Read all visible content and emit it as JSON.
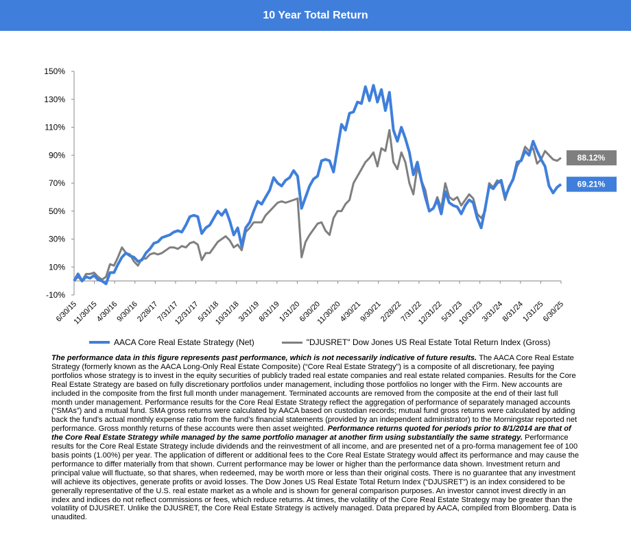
{
  "title": "10 Year Total Return",
  "chart_data": {
    "type": "line",
    "ylim": [
      -10,
      150
    ],
    "y_ticks": [
      -10,
      10,
      30,
      50,
      70,
      90,
      110,
      130,
      150
    ],
    "y_tick_labels": [
      "-10%",
      "10%",
      "30%",
      "50%",
      "70%",
      "90%",
      "110%",
      "130%",
      "150%"
    ],
    "x_ticks": [
      "6/30/15",
      "11/30/15",
      "4/30/16",
      "9/30/16",
      "2/28/17",
      "7/31/17",
      "12/31/17",
      "5/31/18",
      "10/31/18",
      "3/31/19",
      "8/31/19",
      "1/31/20",
      "6/30/20",
      "11/30/20",
      "4/30/21",
      "9/30/21",
      "2/28/22",
      "7/31/22",
      "12/31/22",
      "5/31/23",
      "10/31/23",
      "3/31/24",
      "8/31/24",
      "1/31/25",
      "6/30/25"
    ],
    "grid": false,
    "legend_position": "bottom",
    "series": [
      {
        "name": "AACA Core Real Estate Strategy (Net)",
        "color": "#3f7fdb",
        "end_label": "69.21%",
        "values": [
          0,
          5,
          0,
          3,
          2,
          4,
          1,
          0,
          -2,
          6,
          6,
          12,
          17,
          20,
          18,
          17,
          14,
          15,
          20,
          23,
          27,
          28,
          31,
          32,
          33,
          35,
          36,
          35,
          40,
          46,
          47,
          46,
          34,
          38,
          40,
          45,
          50,
          47,
          51,
          43,
          33,
          38,
          25,
          38,
          42,
          50,
          57,
          55,
          60,
          65,
          74,
          70,
          68,
          72,
          74,
          79,
          75,
          52,
          60,
          68,
          73,
          75,
          86,
          87,
          86,
          78,
          95,
          112,
          108,
          120,
          121,
          128,
          127,
          139,
          129,
          140,
          128,
          137,
          122,
          135,
          108,
          100,
          110,
          102,
          92,
          76,
          85,
          72,
          60,
          50,
          52,
          58,
          48,
          64,
          56,
          54,
          53,
          48,
          54,
          58,
          56,
          45,
          38,
          52,
          68,
          66,
          70,
          72,
          60,
          67,
          73,
          85,
          86,
          93,
          90,
          100,
          93,
          87,
          82,
          68,
          63,
          67,
          69.21
        ]
      },
      {
        "name": "\"DJUSRET\" Dow Jones US Real Estate Total Return Index (Gross)",
        "color": "#7f7f7f",
        "end_label": "88.12%",
        "values": [
          0,
          3,
          0,
          5,
          5,
          6,
          3,
          1,
          3,
          12,
          11,
          17,
          24,
          20,
          19,
          14,
          11,
          16,
          16,
          19,
          20,
          19,
          20,
          22,
          24,
          24,
          23,
          25,
          24,
          27,
          28,
          26,
          15,
          20,
          20,
          24,
          28,
          30,
          32,
          29,
          24,
          26,
          22,
          35,
          38,
          42,
          42,
          42,
          47,
          50,
          53,
          56,
          57,
          56,
          57,
          58,
          59,
          17,
          28,
          33,
          37,
          41,
          42,
          36,
          33,
          45,
          50,
          50,
          55,
          58,
          70,
          75,
          80,
          85,
          88,
          92,
          82,
          95,
          93,
          108,
          85,
          80,
          92,
          85,
          70,
          62,
          82,
          72,
          65,
          50,
          52,
          60,
          52,
          70,
          60,
          58,
          60,
          54,
          58,
          62,
          59,
          48,
          45,
          50,
          70,
          67,
          72,
          70,
          58,
          68,
          72,
          82,
          87,
          96,
          93,
          95,
          84,
          87,
          93,
          90,
          87,
          86,
          88.12
        ]
      }
    ]
  },
  "legend": {
    "net_label": "AACA Core Real Estate Strategy (Net)",
    "gross_label": "\"DJUSRET\" Dow Jones US Real Estate Total Return Index (Gross)"
  },
  "disclaimer": {
    "p1_bold": "The performance data in this figure represents past performance, which is not necessarily indicative of future results.",
    "p2": " The AACA  Core Real Estate Strategy (formerly known as the AACA  Long-Only Real Estate Composite) (“Core Real Estate Strategy”) is a composite of all discretionary, fee paying portfolios whose strategy is to invest in the equity securities of publicly traded real estate companies and real estate related companies. Results for the Core Real Estate Strategy  are based on fully discretionary portfolios under management, including those portfolios no longer with the Firm. New accounts are included in the composite from the first full month under management. Terminated accounts are removed from the composite at the end of their last full month under management. Performance results for the Core Real Estate Strategy reflect the aggregation of performance of separately managed accounts (“SMAs”) and a mutual fund. SMA  gross returns were calculated by AACA  based on custodian records; mutual fund gross returns were calculated by adding back the fund’s actual monthly expense ratio from the fund’s financial statements (provided by an independent administrator) to the Morningstar reported net performance. Gross monthly returns of these accounts were then asset weighted. ",
    "p3_bold": "Performance returns quoted for periods prior to 8/1/2014 are that of the Core Real Estate Strategy while managed by the same portfolio manager at another firm using substantially the same strategy.",
    "p4": " Performance results for the Core Real Estate Strategy include dividends and the reinvestment of all income, and are presented net of a pro-forma management fee of 100 basis points (1.00%) per year. The application of different or additional fees to the Core Real Estate Strategy would affect its performance and may cause the performance to differ materially from that  shown. Current performance may be lower or higher than the performance data shown. Investment return and principal value will fluctuate, so that shares, when redeemed, may be worth more or less than their original costs. There is no guarantee that any investment will achieve its objectives, generate profits or avoid losses. The Dow Jones US Real Estate Total Return Index (“DJUSRET”) is an index considered to be generally representative of the U.S.  real estate market as a whole and is shown for general comparison purposes. An investor cannot invest directly in an index and indices do not reflect commissions or fees, which reduce returns. At  times, the volatility of the Core Real Estate Strategy may be greater than the volatility of DJUSRET. Unlike the DJUSRET, the Core Real Estate Strategy is actively managed. Data prepared by AACA,  compiled from Bloomberg. Data is unaudited."
  }
}
